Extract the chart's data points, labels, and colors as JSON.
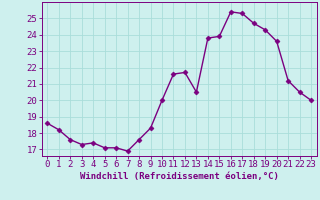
{
  "x": [
    0,
    1,
    2,
    3,
    4,
    5,
    6,
    7,
    8,
    9,
    10,
    11,
    12,
    13,
    14,
    15,
    16,
    17,
    18,
    19,
    20,
    21,
    22,
    23
  ],
  "y": [
    18.6,
    18.2,
    17.6,
    17.3,
    17.4,
    17.1,
    17.1,
    16.9,
    17.6,
    18.3,
    20.0,
    21.6,
    21.7,
    20.5,
    23.8,
    23.9,
    25.4,
    25.3,
    24.7,
    24.3,
    23.6,
    21.2,
    20.5,
    20.0
  ],
  "line_color": "#7b0080",
  "marker": "D",
  "markersize": 2.5,
  "linewidth": 1.0,
  "bg_color": "#cef0ee",
  "grid_color": "#aaddda",
  "xlabel": "Windchill (Refroidissement éolien,°C)",
  "xlabel_fontsize": 6.5,
  "xtick_labels": [
    "0",
    "1",
    "2",
    "3",
    "4",
    "5",
    "6",
    "7",
    "8",
    "9",
    "10",
    "11",
    "12",
    "13",
    "14",
    "15",
    "16",
    "17",
    "18",
    "19",
    "20",
    "21",
    "22",
    "23"
  ],
  "ytick_values": [
    17,
    18,
    19,
    20,
    21,
    22,
    23,
    24,
    25
  ],
  "ylim": [
    16.6,
    26.0
  ],
  "xlim": [
    -0.5,
    23.5
  ],
  "tick_fontsize": 6.5,
  "tick_color": "#7b0080",
  "axis_color": "#7b0080"
}
